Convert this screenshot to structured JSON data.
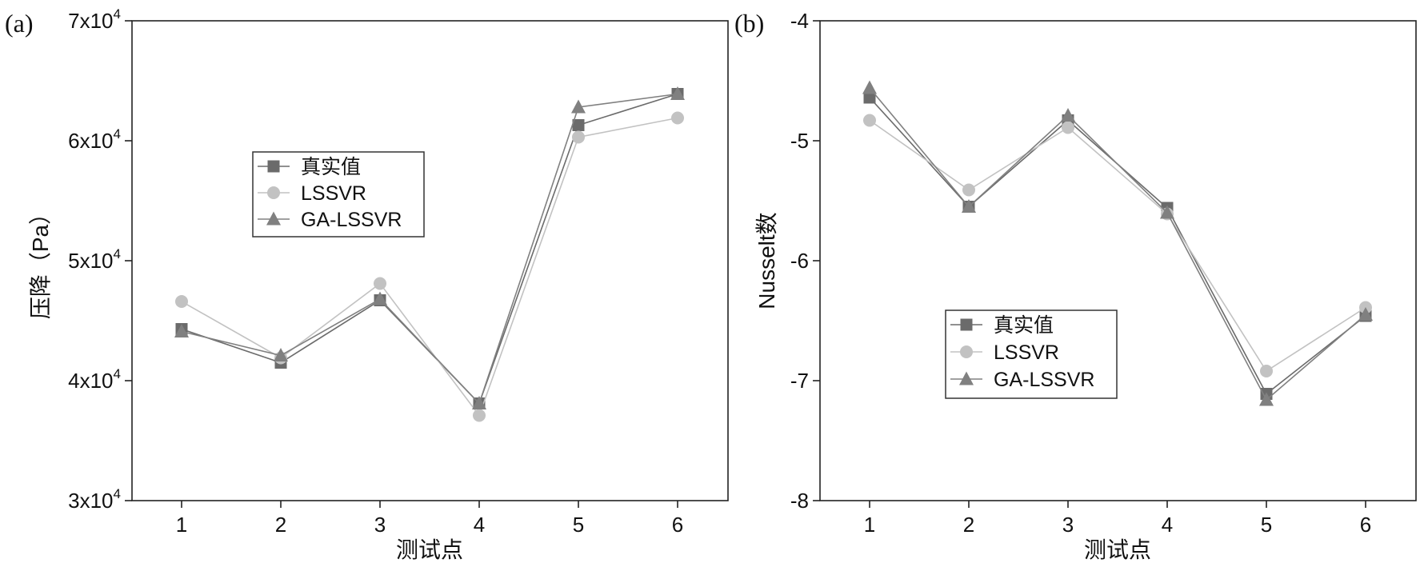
{
  "chart_data": [
    {
      "panel_label": "(a)",
      "type": "line",
      "xlabel": "测试点",
      "ylabel": "压降（Pa）",
      "categories": [
        "1",
        "2",
        "3",
        "4",
        "5",
        "6"
      ],
      "ylim": [
        30000,
        70000
      ],
      "yticks": [
        {
          "value": 30000,
          "base": "3x10",
          "exp": "4"
        },
        {
          "value": 40000,
          "base": "4x10",
          "exp": "4"
        },
        {
          "value": 50000,
          "base": "5x10",
          "exp": "4"
        },
        {
          "value": 60000,
          "base": "6x10",
          "exp": "4"
        },
        {
          "value": 70000,
          "base": "7x10",
          "exp": "4"
        }
      ],
      "legend_position": "upper-middle",
      "grid": false,
      "series": [
        {
          "name": "真实值",
          "marker": "square",
          "color": "#6b6b6b",
          "values": [
            44300,
            41500,
            46700,
            38100,
            61300,
            63900
          ]
        },
        {
          "name": "LSSVR",
          "marker": "circle",
          "color": "#c2c2c2",
          "values": [
            46600,
            41900,
            48100,
            37100,
            60300,
            61900
          ]
        },
        {
          "name": "GA-LSSVR",
          "marker": "triangle",
          "color": "#808080",
          "values": [
            44100,
            42100,
            46800,
            38100,
            62800,
            63900
          ]
        }
      ]
    },
    {
      "panel_label": "(b)",
      "type": "line",
      "xlabel": "测试点",
      "ylabel": "Nusselt数",
      "categories": [
        "1",
        "2",
        "3",
        "4",
        "5",
        "6"
      ],
      "ylim": [
        -8,
        -4
      ],
      "yticks": [
        {
          "value": -8,
          "label": "-8"
        },
        {
          "value": -7,
          "label": "-7"
        },
        {
          "value": -6,
          "label": "-6"
        },
        {
          "value": -5,
          "label": "-5"
        },
        {
          "value": -4,
          "label": "-4"
        }
      ],
      "legend_position": "lower-left",
      "grid": false,
      "series": [
        {
          "name": "真实值",
          "marker": "square",
          "color": "#6b6b6b",
          "values": [
            -4.64,
            -5.55,
            -4.83,
            -5.56,
            -7.11,
            -6.46
          ]
        },
        {
          "name": "LSSVR",
          "marker": "circle",
          "color": "#c2c2c2",
          "values": [
            -4.83,
            -5.41,
            -4.89,
            -5.61,
            -6.92,
            -6.39
          ]
        },
        {
          "name": "GA-LSSVR",
          "marker": "triangle",
          "color": "#808080",
          "values": [
            -4.56,
            -5.55,
            -4.79,
            -5.6,
            -7.16,
            -6.45
          ]
        }
      ]
    }
  ]
}
